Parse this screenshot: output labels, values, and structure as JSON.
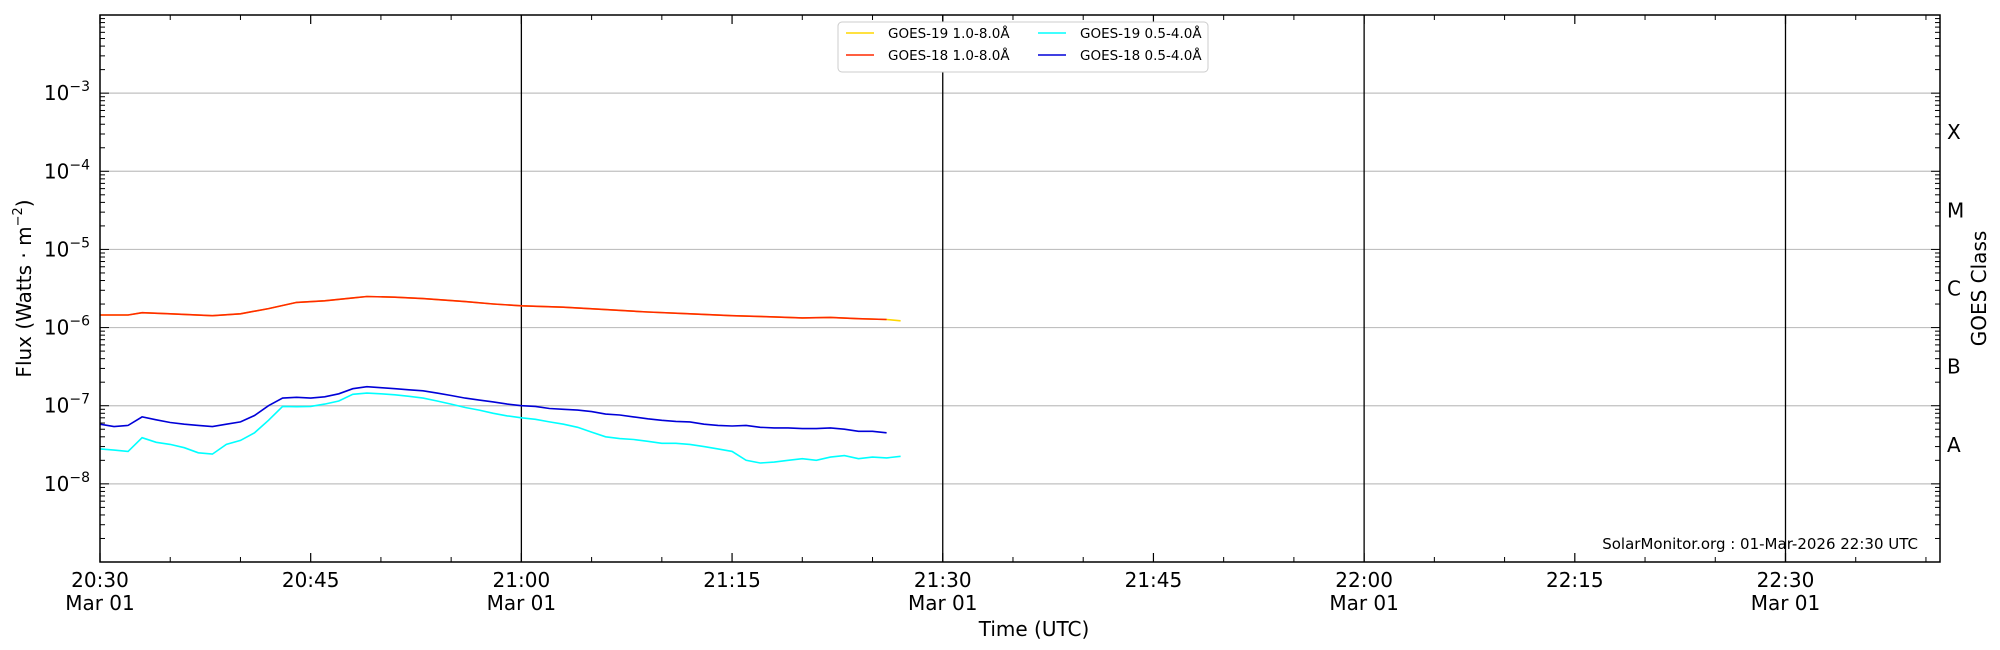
{
  "chart_data": {
    "type": "line",
    "x_axis": {
      "label": "Time (UTC)",
      "range": [
        "20:30",
        "22:41"
      ],
      "ticks": [
        {
          "time": "20:30",
          "line1": "20:30",
          "line2": "Mar 01"
        },
        {
          "time": "20:45",
          "line1": "20:45",
          "line2": ""
        },
        {
          "time": "21:00",
          "line1": "21:00",
          "line2": "Mar 01"
        },
        {
          "time": "21:15",
          "line1": "21:15",
          "line2": ""
        },
        {
          "time": "21:30",
          "line1": "21:30",
          "line2": "Mar 01"
        },
        {
          "time": "21:45",
          "line1": "21:45",
          "line2": ""
        },
        {
          "time": "22:00",
          "line1": "22:00",
          "line2": "Mar 01"
        },
        {
          "time": "22:15",
          "line1": "22:15",
          "line2": ""
        },
        {
          "time": "22:30",
          "line1": "22:30",
          "line2": "Mar 01"
        }
      ],
      "vertical_lines": [
        "21:00",
        "21:30",
        "22:00",
        "22:30"
      ]
    },
    "y_axis": {
      "label_prefix": "Flux (Watts · m",
      "label_sup": "−2",
      "label_suffix": ")",
      "scale": "log",
      "range": [
        1e-09,
        0.01
      ],
      "ticks": [
        {
          "value": 1e-08,
          "base": "10",
          "exp": "−8"
        },
        {
          "value": 1e-07,
          "base": "10",
          "exp": "−7"
        },
        {
          "value": 1e-06,
          "base": "10",
          "exp": "−6"
        },
        {
          "value": 1e-05,
          "base": "10",
          "exp": "−5"
        },
        {
          "value": 0.0001,
          "base": "10",
          "exp": "−4"
        },
        {
          "value": 0.001,
          "base": "10",
          "exp": "−3"
        }
      ],
      "grid": true
    },
    "secondary_y_axis": {
      "label": "GOES Class",
      "classes": [
        {
          "label": "A",
          "value": 3.16e-08
        },
        {
          "label": "B",
          "value": 3.16e-07
        },
        {
          "label": "C",
          "value": 3.16e-06
        },
        {
          "label": "M",
          "value": 3.16e-05
        },
        {
          "label": "X",
          "value": 0.000316
        }
      ]
    },
    "legend": {
      "placement": "top-center",
      "entries": [
        "GOES-19 1.0-8.0Å",
        "GOES-18 1.0-8.0Å",
        "GOES-19 0.5-4.0Å",
        "GOES-18 0.5-4.0Å"
      ]
    },
    "credit": "SolarMonitor.org : 01-Mar-2026 22:30 UTC",
    "series": [
      {
        "name": "GOES-19 1.0-8.0Å",
        "color": "#ffd700",
        "x": [
          "20:30",
          "20:32",
          "20:33",
          "20:35",
          "20:38",
          "20:40",
          "20:42",
          "20:44",
          "20:46",
          "20:48",
          "20:49",
          "20:51",
          "20:53",
          "20:56",
          "20:58",
          "21:00",
          "21:03",
          "21:06",
          "21:09",
          "21:12",
          "21:15",
          "21:18",
          "21:20",
          "21:22",
          "21:24",
          "21:26",
          "21:27"
        ],
        "y": [
          1.45e-06,
          1.45e-06,
          1.55e-06,
          1.5e-06,
          1.42e-06,
          1.5e-06,
          1.75e-06,
          2.1e-06,
          2.2e-06,
          2.4e-06,
          2.5e-06,
          2.45e-06,
          2.35e-06,
          2.15e-06,
          2e-06,
          1.9e-06,
          1.82e-06,
          1.7e-06,
          1.58e-06,
          1.5e-06,
          1.42e-06,
          1.37e-06,
          1.33e-06,
          1.35e-06,
          1.3e-06,
          1.27e-06,
          1.22e-06
        ]
      },
      {
        "name": "GOES-18 1.0-8.0Å",
        "color": "#ff2a00",
        "x": [
          "20:30",
          "20:32",
          "20:33",
          "20:35",
          "20:38",
          "20:40",
          "20:42",
          "20:44",
          "20:46",
          "20:48",
          "20:49",
          "20:51",
          "20:53",
          "20:56",
          "20:58",
          "21:00",
          "21:03",
          "21:06",
          "21:09",
          "21:12",
          "21:15",
          "21:18",
          "21:20",
          "21:22",
          "21:24",
          "21:26"
        ],
        "y": [
          1.45e-06,
          1.45e-06,
          1.55e-06,
          1.5e-06,
          1.42e-06,
          1.5e-06,
          1.75e-06,
          2.1e-06,
          2.2e-06,
          2.4e-06,
          2.5e-06,
          2.45e-06,
          2.35e-06,
          2.15e-06,
          2e-06,
          1.9e-06,
          1.82e-06,
          1.7e-06,
          1.58e-06,
          1.5e-06,
          1.42e-06,
          1.37e-06,
          1.33e-06,
          1.35e-06,
          1.3e-06,
          1.27e-06
        ]
      },
      {
        "name": "GOES-19 0.5-4.0Å",
        "color": "#00ffff",
        "x": [
          "20:30",
          "20:31",
          "20:32",
          "20:33",
          "20:34",
          "20:35",
          "20:36",
          "20:37",
          "20:38",
          "20:39",
          "20:40",
          "20:41",
          "20:42",
          "20:43",
          "20:44",
          "20:45",
          "20:46",
          "20:47",
          "20:48",
          "20:49",
          "20:50",
          "20:51",
          "20:52",
          "20:53",
          "20:54",
          "20:55",
          "20:56",
          "20:57",
          "20:58",
          "20:59",
          "21:00",
          "21:01",
          "21:02",
          "21:03",
          "21:04",
          "21:05",
          "21:06",
          "21:07",
          "21:08",
          "21:09",
          "21:10",
          "21:11",
          "21:12",
          "21:13",
          "21:14",
          "21:15",
          "21:16",
          "21:17",
          "21:18",
          "21:19",
          "21:20",
          "21:21",
          "21:22",
          "21:23",
          "21:24",
          "21:25",
          "21:26",
          "21:27"
        ],
        "y": [
          2.8e-08,
          2.7e-08,
          2.6e-08,
          3.9e-08,
          3.4e-08,
          3.2e-08,
          2.9e-08,
          2.5e-08,
          2.4e-08,
          3.2e-08,
          3.6e-08,
          4.5e-08,
          6.5e-08,
          9.8e-08,
          9.7e-08,
          9.8e-08,
          1.05e-07,
          1.15e-07,
          1.4e-07,
          1.45e-07,
          1.42e-07,
          1.38e-07,
          1.32e-07,
          1.25e-07,
          1.15e-07,
          1.05e-07,
          9.5e-08,
          8.8e-08,
          8e-08,
          7.4e-08,
          7e-08,
          6.7e-08,
          6.2e-08,
          5.8e-08,
          5.3e-08,
          4.6e-08,
          4e-08,
          3.8e-08,
          3.7e-08,
          3.5e-08,
          3.3e-08,
          3.3e-08,
          3.2e-08,
          3e-08,
          2.8e-08,
          2.6e-08,
          2e-08,
          1.85e-08,
          1.9e-08,
          2e-08,
          2.1e-08,
          2e-08,
          2.2e-08,
          2.3e-08,
          2.1e-08,
          2.2e-08,
          2.15e-08,
          2.25e-08
        ]
      },
      {
        "name": "GOES-18 0.5-4.0Å",
        "color": "#0000d8",
        "x": [
          "20:30",
          "20:31",
          "20:32",
          "20:33",
          "20:34",
          "20:35",
          "20:36",
          "20:37",
          "20:38",
          "20:39",
          "20:40",
          "20:41",
          "20:42",
          "20:43",
          "20:44",
          "20:45",
          "20:46",
          "20:47",
          "20:48",
          "20:49",
          "20:50",
          "20:51",
          "20:52",
          "20:53",
          "20:54",
          "20:55",
          "20:56",
          "20:57",
          "20:58",
          "20:59",
          "21:00",
          "21:01",
          "21:02",
          "21:03",
          "21:04",
          "21:05",
          "21:06",
          "21:07",
          "21:08",
          "21:09",
          "21:10",
          "21:11",
          "21:12",
          "21:13",
          "21:14",
          "21:15",
          "21:16",
          "21:17",
          "21:18",
          "21:19",
          "21:20",
          "21:21",
          "21:22",
          "21:23",
          "21:24",
          "21:25",
          "21:26"
        ],
        "y": [
          5.8e-08,
          5.4e-08,
          5.6e-08,
          7.2e-08,
          6.6e-08,
          6.1e-08,
          5.8e-08,
          5.6e-08,
          5.4e-08,
          5.8e-08,
          6.2e-08,
          7.5e-08,
          1e-07,
          1.25e-07,
          1.28e-07,
          1.25e-07,
          1.3e-07,
          1.42e-07,
          1.65e-07,
          1.75e-07,
          1.7e-07,
          1.65e-07,
          1.6e-07,
          1.55e-07,
          1.45e-07,
          1.35e-07,
          1.25e-07,
          1.18e-07,
          1.12e-07,
          1.05e-07,
          1e-07,
          9.8e-08,
          9.2e-08,
          9e-08,
          8.8e-08,
          8.4e-08,
          7.8e-08,
          7.6e-08,
          7.2e-08,
          6.8e-08,
          6.5e-08,
          6.3e-08,
          6.2e-08,
          5.8e-08,
          5.6e-08,
          5.5e-08,
          5.6e-08,
          5.3e-08,
          5.2e-08,
          5.2e-08,
          5.1e-08,
          5.1e-08,
          5.2e-08,
          5e-08,
          4.7e-08,
          4.7e-08,
          4.5e-08
        ]
      }
    ]
  }
}
